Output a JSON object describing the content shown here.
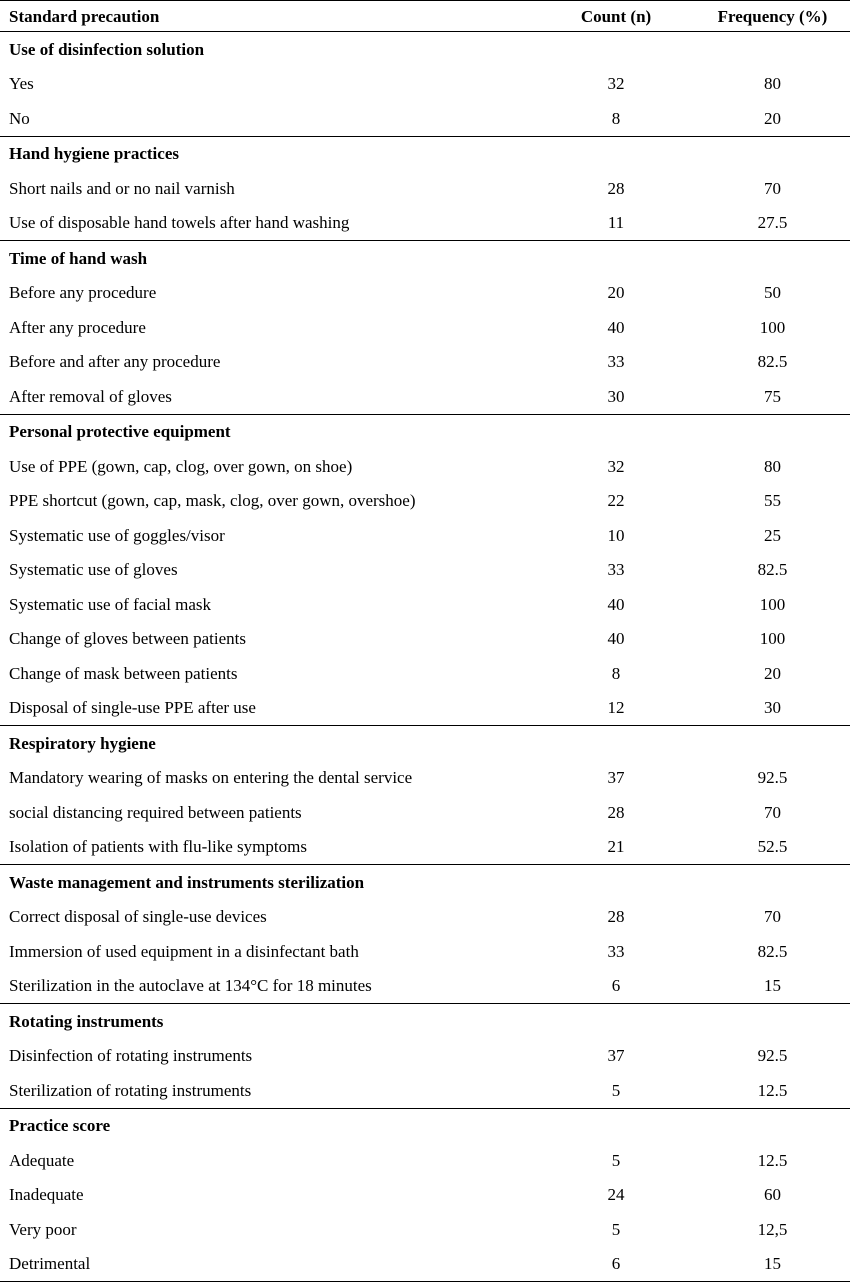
{
  "header": {
    "col1": "Standard precaution",
    "col2": "Count (n)",
    "col3": "Frequency (%)"
  },
  "sections": [
    {
      "title": "Use of disinfection solution",
      "rows": [
        {
          "label": "Yes",
          "count": "32",
          "freq": "80"
        },
        {
          "label": "No",
          "count": "8",
          "freq": "20"
        }
      ]
    },
    {
      "title": "Hand hygiene practices",
      "rows": [
        {
          "label": "Short nails and or no nail varnish",
          "count": "28",
          "freq": "70"
        },
        {
          "label": "Use of disposable hand towels after hand washing",
          "count": "11",
          "freq": "27.5"
        }
      ]
    },
    {
      "title": "Time of hand wash",
      "rows": [
        {
          "label": "Before any procedure",
          "count": "20",
          "freq": "50"
        },
        {
          "label": "After any procedure",
          "count": "40",
          "freq": "100"
        },
        {
          "label": "Before and after any procedure",
          "count": "33",
          "freq": "82.5"
        },
        {
          "label": "After removal of gloves",
          "count": "30",
          "freq": "75"
        }
      ]
    },
    {
      "title": "Personal protective equipment",
      "rows": [
        {
          "label": "Use of PPE (gown, cap, clog, over gown, on shoe)",
          "count": "32",
          "freq": "80"
        },
        {
          "label": "PPE shortcut (gown, cap, mask, clog, over gown, overshoe)",
          "count": "22",
          "freq": "55"
        },
        {
          "label": "Systematic use of goggles/visor",
          "count": "10",
          "freq": "25"
        },
        {
          "label": "Systematic use of gloves",
          "count": "33",
          "freq": "82.5"
        },
        {
          "label": "Systematic use of facial mask",
          "count": "40",
          "freq": "100"
        },
        {
          "label": "Change of gloves between patients",
          "count": "40",
          "freq": "100"
        },
        {
          "label": "Change of mask between patients",
          "count": "8",
          "freq": "20"
        },
        {
          "label": "Disposal of single-use PPE after use",
          "count": "12",
          "freq": "30"
        }
      ]
    },
    {
      "title": "Respiratory hygiene",
      "rows": [
        {
          "label": "Mandatory wearing of masks on entering the dental service",
          "count": "37",
          "freq": "92.5"
        },
        {
          "label": "social distancing required between patients",
          "count": "28",
          "freq": "70"
        },
        {
          "label": "Isolation of patients with flu-like symptoms",
          "count": "21",
          "freq": "52.5"
        }
      ]
    },
    {
      "title": "Waste management and instruments sterilization",
      "rows": [
        {
          "label": "Correct disposal of single-use devices",
          "count": "28",
          "freq": "70"
        },
        {
          "label": "Immersion of used equipment in a disinfectant bath",
          "count": "33",
          "freq": "82.5"
        },
        {
          "label": "Sterilization in the autoclave at 134°C for 18 minutes",
          "count": "6",
          "freq": "15"
        }
      ]
    },
    {
      "title": "Rotating instruments",
      "rows": [
        {
          "label": "Disinfection of rotating instruments",
          "count": "37",
          "freq": "92.5"
        },
        {
          "label": "Sterilization of rotating instruments",
          "count": "5",
          "freq": "12.5"
        }
      ]
    },
    {
      "title": "Practice score",
      "rows": [
        {
          "label": "Adequate",
          "count": "5",
          "freq": "12.5"
        },
        {
          "label": "Inadequate",
          "count": "24",
          "freq": "60"
        },
        {
          "label": "Very poor",
          "count": "5",
          "freq": "12,5"
        },
        {
          "label": "Detrimental",
          "count": "6",
          "freq": "15"
        }
      ]
    }
  ]
}
